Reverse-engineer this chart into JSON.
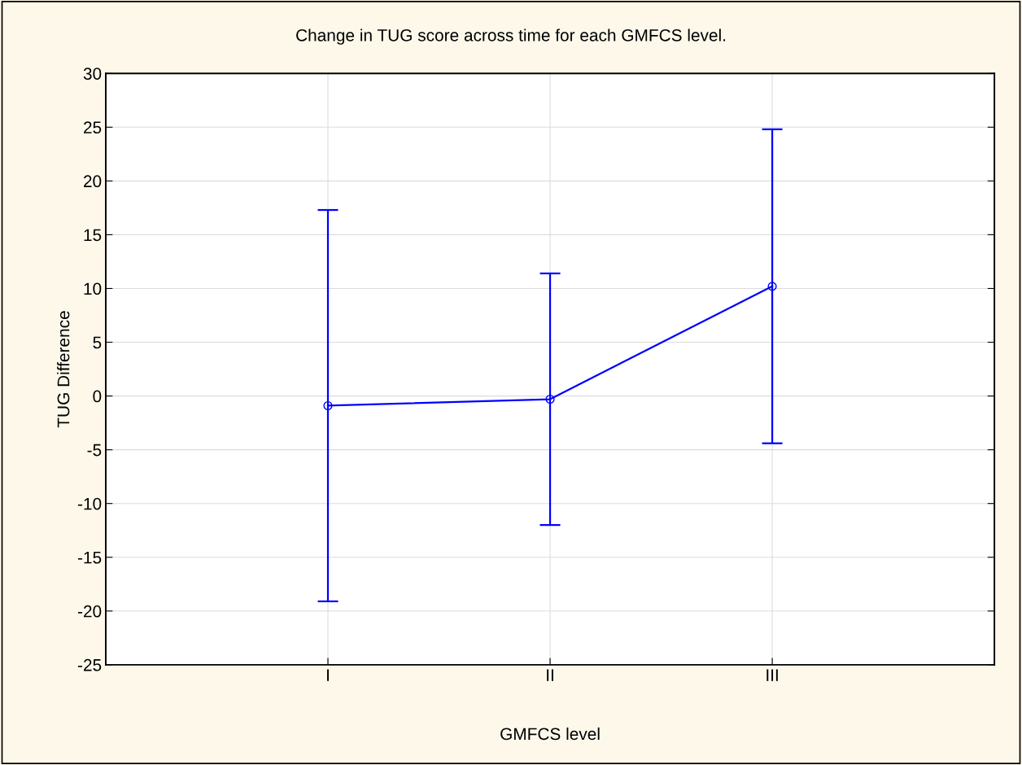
{
  "chart_data": {
    "type": "line",
    "title": "Change in TUG score across time for each GMFCS level.",
    "xlabel": "GMFCS level",
    "ylabel": "TUG Difference",
    "categories": [
      "I",
      "II",
      "III"
    ],
    "series": [
      {
        "color": "#0000ff",
        "values": [
          -0.9,
          -0.3,
          10.2
        ],
        "errors": [
          18.2,
          11.7,
          14.6
        ]
      }
    ],
    "ylim": [
      -25,
      30
    ],
    "yticks": [
      -25,
      -20,
      -15,
      -10,
      -5,
      0,
      5,
      10,
      15,
      20,
      25,
      30
    ],
    "grid": true,
    "marker": "circle",
    "line_style": "solid",
    "legend": false
  }
}
